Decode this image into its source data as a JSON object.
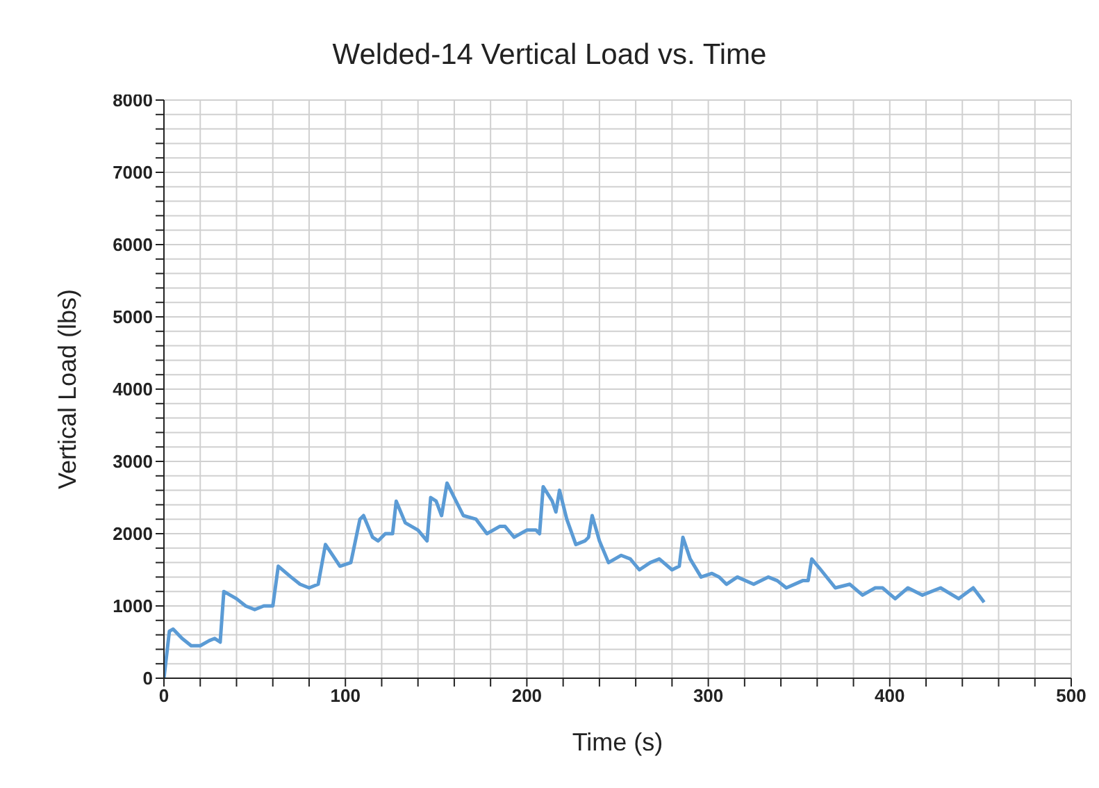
{
  "chart_data": {
    "type": "line",
    "title": "Welded-14 Vertical Load vs. Time",
    "xlabel": "Time (s)",
    "ylabel": "Vertical Load (lbs)",
    "xlim": [
      0,
      500
    ],
    "xticks": [
      0,
      {
        "value": 20,
        "label": null
      },
      {
        "value": 40,
        "label": null
      },
      {
        "value": 60,
        "label": null
      },
      {
        "value": 80,
        "label": null
      },
      100,
      {
        "value": 120,
        "label": null
      },
      {
        "value": 140,
        "label": null
      },
      {
        "value": 160,
        "label": null
      },
      {
        "value": 180,
        "label": null
      },
      200,
      {
        "value": 220,
        "label": null
      },
      {
        "value": 240,
        "label": null
      },
      {
        "value": 260,
        "label": null
      },
      {
        "value": 280,
        "label": null
      },
      300,
      {
        "value": 320,
        "label": null
      },
      {
        "value": 340,
        "label": null
      },
      {
        "value": 360,
        "label": null
      },
      {
        "value": 380,
        "label": null
      },
      400,
      {
        "value": 420,
        "label": null
      },
      {
        "value": 440,
        "label": null
      },
      {
        "value": 460,
        "label": null
      },
      {
        "value": 480,
        "label": null
      },
      500
    ],
    "ylim": [
      0,
      8000
    ],
    "yticks": [
      0,
      {
        "value": 200,
        "label": null
      },
      {
        "value": 400,
        "label": null
      },
      {
        "value": 600,
        "label": null
      },
      {
        "value": 800,
        "label": null
      },
      1000,
      {
        "value": 1200,
        "label": null
      },
      {
        "value": 1400,
        "label": null
      },
      {
        "value": 1600,
        "label": null
      },
      {
        "value": 1800,
        "label": null
      },
      2000,
      {
        "value": 2200,
        "label": null
      },
      {
        "value": 2400,
        "label": null
      },
      {
        "value": 2600,
        "label": null
      },
      {
        "value": 2800,
        "label": null
      },
      3000,
      {
        "value": 3200,
        "label": null
      },
      {
        "value": 3400,
        "label": null
      },
      {
        "value": 3600,
        "label": null
      },
      {
        "value": 3800,
        "label": null
      },
      4000,
      {
        "value": 4200,
        "label": null
      },
      {
        "value": 4400,
        "label": null
      },
      {
        "value": 4600,
        "label": null
      },
      {
        "value": 4800,
        "label": null
      },
      5000,
      {
        "value": 5200,
        "label": null
      },
      {
        "value": 5400,
        "label": null
      },
      {
        "value": 5600,
        "label": null
      },
      {
        "value": 5800,
        "label": null
      },
      6000,
      {
        "value": 6200,
        "label": null
      },
      {
        "value": 6400,
        "label": null
      },
      {
        "value": 6600,
        "label": null
      },
      {
        "value": 6800,
        "label": null
      },
      7000,
      {
        "value": 7200,
        "label": null
      },
      {
        "value": 7400,
        "label": null
      },
      {
        "value": 7600,
        "label": null
      },
      {
        "value": 7800,
        "label": null
      },
      8000
    ],
    "grid": true,
    "legend": false,
    "marker": "none",
    "line_style": "solid",
    "series": [
      {
        "color": "#5b9bd5",
        "x": [
          0,
          3,
          5,
          10,
          15,
          20,
          25,
          28,
          31,
          33,
          40,
          45,
          50,
          55,
          60,
          63,
          70,
          75,
          80,
          85,
          89,
          93,
          97,
          103,
          108,
          110,
          115,
          118,
          122,
          126,
          128,
          133,
          140,
          145,
          147,
          150,
          153,
          156,
          160,
          165,
          172,
          178,
          185,
          188,
          193,
          200,
          205,
          207,
          209,
          214,
          216,
          218,
          222,
          227,
          232,
          234,
          236,
          240,
          245,
          252,
          257,
          262,
          268,
          273,
          280,
          284,
          286,
          290,
          296,
          302,
          306,
          310,
          316,
          325,
          333,
          338,
          343,
          352,
          355,
          357,
          362,
          370,
          378,
          385,
          392,
          396,
          403,
          410,
          418,
          428,
          438,
          446,
          452
        ],
        "values": [
          0,
          650,
          680,
          550,
          450,
          450,
          520,
          550,
          500,
          1200,
          1100,
          1000,
          950,
          1000,
          1000,
          1550,
          1400,
          1300,
          1250,
          1300,
          1850,
          1700,
          1550,
          1600,
          2200,
          2250,
          1950,
          1900,
          2000,
          2000,
          2450,
          2150,
          2050,
          1900,
          2500,
          2450,
          2250,
          2700,
          2500,
          2250,
          2200,
          2000,
          2100,
          2100,
          1950,
          2050,
          2050,
          2000,
          2650,
          2450,
          2300,
          2600,
          2200,
          1850,
          1900,
          1950,
          2250,
          1900,
          1600,
          1700,
          1650,
          1500,
          1600,
          1650,
          1500,
          1550,
          1950,
          1650,
          1400,
          1450,
          1400,
          1300,
          1400,
          1300,
          1400,
          1350,
          1250,
          1350,
          1350,
          1650,
          1500,
          1250,
          1300,
          1150,
          1250,
          1250,
          1100,
          1250,
          1150,
          1250,
          1100,
          1250,
          1050
        ]
      }
    ]
  }
}
